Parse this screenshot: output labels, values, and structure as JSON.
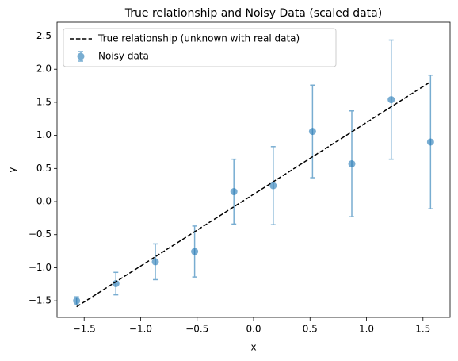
{
  "chart_data": {
    "type": "scatter",
    "title": "True relationship and Noisy Data (scaled data)",
    "x_label": "x",
    "y_label": "y",
    "xlim": [
      -1.74,
      1.74
    ],
    "ylim": [
      -1.75,
      2.71
    ],
    "xticks": [
      {
        "value": -1.5,
        "label": "−1.5"
      },
      {
        "value": -1,
        "label": "−1.0"
      },
      {
        "value": -0.5,
        "label": "−0.5"
      },
      {
        "value": 0,
        "label": "0.0"
      },
      0.5,
      {
        "value": 1,
        "label": "1.0"
      },
      1.5
    ],
    "yticks": [
      {
        "value": -1.5,
        "label": "−1.5"
      },
      {
        "value": -1,
        "label": "−1.0"
      },
      {
        "value": -0.5,
        "label": "−0.5"
      },
      {
        "value": 0,
        "label": "0.0"
      },
      0.5,
      {
        "value": 1,
        "label": "1.0"
      },
      1.5,
      {
        "value": 2,
        "label": "2.0"
      },
      2.5
    ],
    "legend": "upper left",
    "series": [
      {
        "name": "True relationship (unknown with real data)",
        "kind": "line",
        "color": "#000000",
        "dashed": true,
        "x": [
          -1.567,
          1.567
        ],
        "y": [
          -1.59,
          1.81
        ]
      },
      {
        "name": "Noisy data",
        "kind": "errorbar",
        "color": "#1f77b4",
        "x": [
          -1.567,
          -1.219,
          -0.87,
          -0.522,
          -0.174,
          0.174,
          0.522,
          0.87,
          1.219,
          1.567
        ],
        "y": [
          -1.5,
          -1.24,
          -0.91,
          -0.755,
          0.15,
          0.24,
          1.06,
          0.57,
          1.54,
          0.9
        ],
        "errors": [
          0.06,
          0.17,
          0.27,
          0.385,
          0.49,
          0.59,
          0.7,
          0.8,
          0.9,
          1.01
        ]
      }
    ]
  }
}
